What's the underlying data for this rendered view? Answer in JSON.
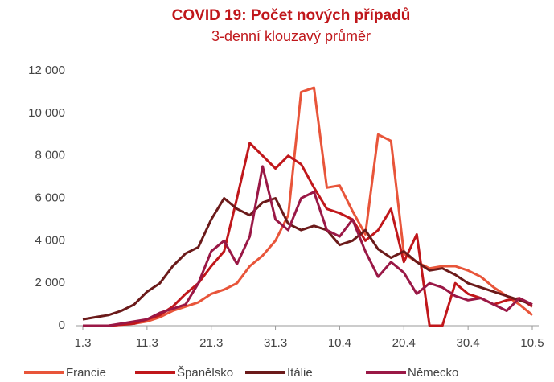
{
  "chart_data": {
    "type": "line",
    "title": "COVID 19: Počet nových případů",
    "subtitle": "3-denní klouzavý průměr",
    "categories": [
      "1.3",
      null,
      null,
      null,
      null,
      "11.3",
      null,
      null,
      null,
      null,
      "21.3",
      null,
      null,
      null,
      null,
      "31.3",
      null,
      null,
      null,
      null,
      "10.4",
      null,
      null,
      null,
      null,
      "20.4",
      null,
      null,
      null,
      null,
      "30.4",
      null,
      null,
      null,
      null,
      "10.5"
    ],
    "series": [
      {
        "name": "Francie",
        "color": "#e8553a",
        "values": [
          0,
          0,
          0,
          50,
          100,
          200,
          400,
          700,
          900,
          1100,
          1500,
          1700,
          2000,
          2800,
          3300,
          4000,
          5200,
          11000,
          11200,
          6500,
          6600,
          5400,
          4300,
          9000,
          8700,
          3400,
          3000,
          2700,
          2800,
          2800,
          2600,
          2300,
          1800,
          1400,
          1000,
          500
        ]
      },
      {
        "name": "Španělsko",
        "color": "#c0171b",
        "values": [
          0,
          0,
          0,
          50,
          100,
          300,
          500,
          900,
          1500,
          2000,
          2800,
          3500,
          6000,
          8600,
          8000,
          7400,
          8000,
          7600,
          6500,
          5500,
          5300,
          5000,
          4000,
          4500,
          5500,
          3000,
          4300,
          0,
          0,
          2000,
          1500,
          1300,
          1000,
          1200,
          1300,
          900
        ]
      },
      {
        "name": "Itálie",
        "color": "#6b1a1a",
        "values": [
          300,
          400,
          500,
          700,
          1000,
          1600,
          2000,
          2800,
          3400,
          3700,
          5000,
          6000,
          5500,
          5200,
          5800,
          6000,
          4800,
          4500,
          4700,
          4500,
          3800,
          4000,
          4500,
          3600,
          3200,
          3500,
          3000,
          2600,
          2700,
          2400,
          2000,
          1800,
          1600,
          1400,
          1200,
          1000
        ]
      },
      {
        "name": "Německo",
        "color": "#9a1846",
        "values": [
          0,
          0,
          0,
          100,
          200,
          300,
          600,
          800,
          1000,
          2000,
          3500,
          4000,
          2900,
          4200,
          7500,
          5000,
          4500,
          6000,
          6300,
          4500,
          4200,
          5000,
          3500,
          2300,
          3000,
          2500,
          1500,
          2000,
          1800,
          1400,
          1200,
          1300,
          1000,
          700,
          1300,
          1000
        ]
      }
    ],
    "ylim": [
      0,
      12000
    ],
    "yticks": [
      0,
      {
        "value": 2000,
        "label": "2 000"
      },
      {
        "value": 4000,
        "label": "4 000"
      },
      {
        "value": 6000,
        "label": "6 000"
      },
      {
        "value": 8000,
        "label": "8 000"
      },
      {
        "value": 10000,
        "label": "10 000"
      },
      {
        "value": 12000,
        "label": "12 000"
      }
    ],
    "legend": "bottom"
  }
}
